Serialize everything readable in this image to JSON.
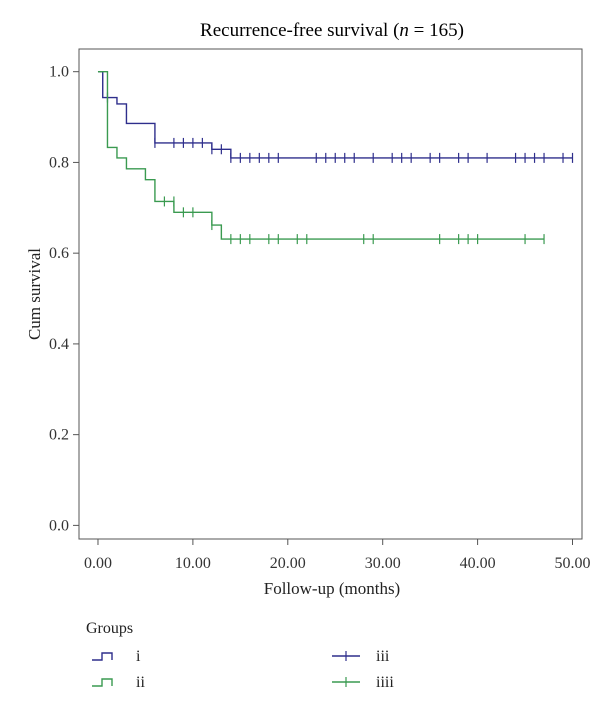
{
  "chart_data": {
    "type": "line",
    "subtype": "kaplan-meier-step",
    "title_parts": {
      "pre": "Recurrence-free survival (",
      "italic": "n",
      "post": " = 165)"
    },
    "xlabel": "Follow-up (months)",
    "ylabel": "Cum survival",
    "xlim": [
      -2,
      51
    ],
    "ylim": [
      -0.03,
      1.05
    ],
    "xticks": [
      0,
      10,
      20,
      30,
      40,
      50
    ],
    "xtick_labels": [
      "0.00",
      "10.00",
      "20.00",
      "30.00",
      "40.00",
      "50.00"
    ],
    "yticks": [
      0.0,
      0.2,
      0.4,
      0.6,
      0.8,
      1.0
    ],
    "ytick_labels": [
      "0.0",
      "0.2",
      "0.4",
      "0.6",
      "0.8",
      "1.0"
    ],
    "grid": false,
    "legend": {
      "title": "Groups",
      "placement": "bottom",
      "entries": [
        {
          "label": "i",
          "kind": "step",
          "color": "#2e2e8c"
        },
        {
          "label": "ii",
          "kind": "step",
          "color": "#3a9a50"
        },
        {
          "label": "iii",
          "kind": "censor",
          "color": "#2e2e8c"
        },
        {
          "label": "iiii",
          "kind": "censor",
          "color": "#3a9a50"
        }
      ]
    },
    "series": [
      {
        "color": "#2e2e8c",
        "steps": [
          [
            0,
            1.0
          ],
          [
            0.5,
            0.943
          ],
          [
            2,
            0.929
          ],
          [
            3,
            0.886
          ],
          [
            6,
            0.843
          ],
          [
            12,
            0.829
          ],
          [
            14,
            0.81
          ],
          [
            50,
            0.81
          ]
        ],
        "censored": [
          [
            1,
            0.943
          ],
          [
            6,
            0.843
          ],
          [
            8,
            0.843
          ],
          [
            9,
            0.843
          ],
          [
            10,
            0.843
          ],
          [
            11,
            0.843
          ],
          [
            12,
            0.829
          ],
          [
            13,
            0.829
          ],
          [
            14,
            0.81
          ],
          [
            15,
            0.81
          ],
          [
            16,
            0.81
          ],
          [
            17,
            0.81
          ],
          [
            18,
            0.81
          ],
          [
            19,
            0.81
          ],
          [
            23,
            0.81
          ],
          [
            24,
            0.81
          ],
          [
            25,
            0.81
          ],
          [
            26,
            0.81
          ],
          [
            27,
            0.81
          ],
          [
            29,
            0.81
          ],
          [
            31,
            0.81
          ],
          [
            32,
            0.81
          ],
          [
            33,
            0.81
          ],
          [
            35,
            0.81
          ],
          [
            36,
            0.81
          ],
          [
            38,
            0.81
          ],
          [
            39,
            0.81
          ],
          [
            41,
            0.81
          ],
          [
            44,
            0.81
          ],
          [
            45,
            0.81
          ],
          [
            46,
            0.81
          ],
          [
            47,
            0.81
          ],
          [
            49,
            0.81
          ],
          [
            50,
            0.81
          ]
        ]
      },
      {
        "color": "#3a9a50",
        "steps": [
          [
            0,
            1.0
          ],
          [
            1,
            0.833
          ],
          [
            2,
            0.81
          ],
          [
            3,
            0.786
          ],
          [
            5,
            0.762
          ],
          [
            6,
            0.714
          ],
          [
            8,
            0.69
          ],
          [
            12,
            0.662
          ],
          [
            13,
            0.631
          ],
          [
            47,
            0.631
          ]
        ],
        "censored": [
          [
            7,
            0.714
          ],
          [
            8,
            0.714
          ],
          [
            9,
            0.69
          ],
          [
            10,
            0.69
          ],
          [
            12,
            0.662
          ],
          [
            14,
            0.631
          ],
          [
            15,
            0.631
          ],
          [
            16,
            0.631
          ],
          [
            18,
            0.631
          ],
          [
            19,
            0.631
          ],
          [
            21,
            0.631
          ],
          [
            22,
            0.631
          ],
          [
            28,
            0.631
          ],
          [
            29,
            0.631
          ],
          [
            36,
            0.631
          ],
          [
            38,
            0.631
          ],
          [
            39,
            0.631
          ],
          [
            40,
            0.631
          ],
          [
            45,
            0.631
          ],
          [
            47,
            0.631
          ]
        ]
      }
    ]
  }
}
